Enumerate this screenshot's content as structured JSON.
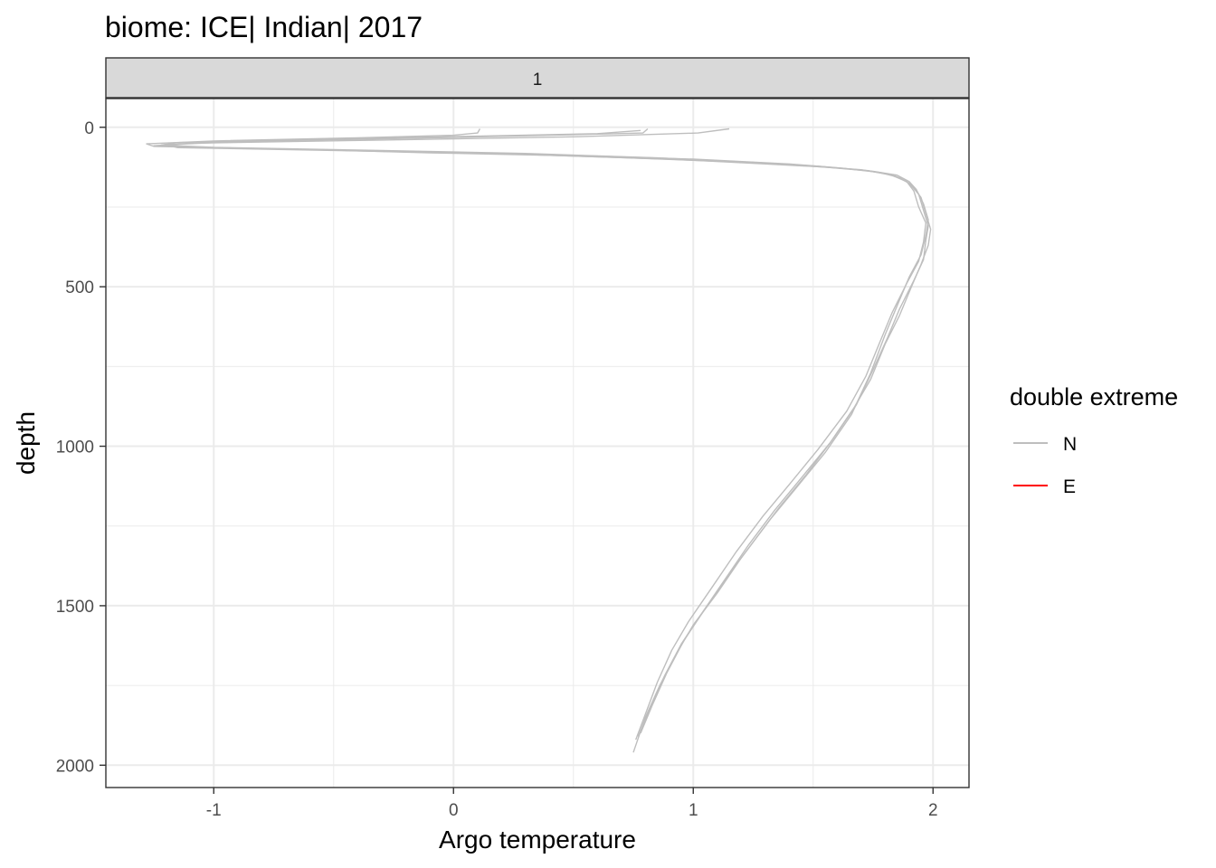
{
  "chart_data": {
    "type": "line",
    "title": "biome: ICE| Indian| 2017",
    "facet_label": "1",
    "xlabel": "Argo temperature",
    "ylabel": "depth",
    "xlim": [
      -1.45,
      2.15
    ],
    "ylim": [
      2070,
      -90
    ],
    "y_reversed": true,
    "x_ticks": [
      -1,
      0,
      1,
      2
    ],
    "x_tick_labels": [
      "-1",
      "0",
      "1",
      "2"
    ],
    "y_ticks": [
      0,
      500,
      1000,
      1500,
      2000
    ],
    "y_tick_labels": [
      "0",
      "500",
      "1000",
      "1500",
      "2000"
    ],
    "grid": true,
    "legend": {
      "title": "double extreme",
      "position": "right",
      "entries": [
        {
          "label": "N",
          "color": "#bebebe"
        },
        {
          "label": "E",
          "color": "#ff0000"
        }
      ]
    },
    "series": [
      {
        "group": "N",
        "color": "#bebebe",
        "points": [
          [
            0.11,
            5
          ],
          [
            0.1,
            18
          ],
          [
            0.0,
            25
          ],
          [
            -0.4,
            33
          ],
          [
            -1.0,
            43
          ],
          [
            -1.28,
            52
          ],
          [
            -1.25,
            60
          ],
          [
            -0.6,
            70
          ],
          [
            -0.1,
            80
          ],
          [
            0.4,
            88
          ],
          [
            0.9,
            100
          ],
          [
            1.3,
            115
          ],
          [
            1.55,
            125
          ],
          [
            1.75,
            138
          ],
          [
            1.85,
            150
          ],
          [
            1.9,
            170
          ],
          [
            1.93,
            195
          ],
          [
            1.96,
            240
          ],
          [
            1.98,
            290
          ],
          [
            1.97,
            340
          ],
          [
            1.95,
            400
          ],
          [
            1.9,
            470
          ],
          [
            1.85,
            560
          ],
          [
            1.8,
            650
          ],
          [
            1.74,
            770
          ],
          [
            1.66,
            900
          ],
          [
            1.55,
            1020
          ],
          [
            1.43,
            1130
          ],
          [
            1.32,
            1230
          ],
          [
            1.2,
            1350
          ],
          [
            1.1,
            1460
          ],
          [
            1.0,
            1560
          ],
          [
            0.93,
            1650
          ],
          [
            0.86,
            1750
          ],
          [
            0.8,
            1850
          ],
          [
            0.75,
            1960
          ]
        ]
      },
      {
        "group": "N",
        "color": "#bebebe",
        "points": [
          [
            0.81,
            5
          ],
          [
            0.79,
            18
          ],
          [
            0.4,
            25
          ],
          [
            -0.2,
            35
          ],
          [
            -0.9,
            45
          ],
          [
            -1.2,
            55
          ],
          [
            -1.15,
            64
          ],
          [
            -0.4,
            74
          ],
          [
            0.2,
            83
          ],
          [
            0.7,
            95
          ],
          [
            1.15,
            108
          ],
          [
            1.45,
            120
          ],
          [
            1.7,
            133
          ],
          [
            1.82,
            148
          ],
          [
            1.89,
            170
          ],
          [
            1.92,
            200
          ],
          [
            1.94,
            250
          ],
          [
            1.97,
            300
          ],
          [
            1.96,
            360
          ],
          [
            1.94,
            420
          ],
          [
            1.89,
            490
          ],
          [
            1.83,
            580
          ],
          [
            1.78,
            670
          ],
          [
            1.72,
            780
          ],
          [
            1.64,
            890
          ],
          [
            1.52,
            1010
          ],
          [
            1.4,
            1120
          ],
          [
            1.29,
            1220
          ],
          [
            1.18,
            1330
          ],
          [
            1.08,
            1440
          ],
          [
            0.98,
            1550
          ],
          [
            0.91,
            1640
          ],
          [
            0.85,
            1740
          ],
          [
            0.8,
            1840
          ],
          [
            0.76,
            1920
          ]
        ]
      },
      {
        "group": "N",
        "color": "#bebebe",
        "points": [
          [
            1.15,
            5
          ],
          [
            1.02,
            18
          ],
          [
            0.5,
            30
          ],
          [
            -0.3,
            40
          ],
          [
            -1.1,
            50
          ],
          [
            -1.25,
            58
          ],
          [
            -0.9,
            66
          ],
          [
            -0.2,
            76
          ],
          [
            0.5,
            88
          ],
          [
            1.0,
            100
          ],
          [
            1.4,
            115
          ],
          [
            1.62,
            128
          ],
          [
            1.78,
            142
          ],
          [
            1.86,
            158
          ],
          [
            1.91,
            180
          ],
          [
            1.95,
            220
          ],
          [
            1.97,
            270
          ],
          [
            1.99,
            320
          ],
          [
            1.98,
            370
          ],
          [
            1.95,
            430
          ],
          [
            1.91,
            500
          ],
          [
            1.86,
            590
          ],
          [
            1.8,
            680
          ],
          [
            1.74,
            790
          ],
          [
            1.67,
            880
          ],
          [
            1.57,
            990
          ],
          [
            1.45,
            1100
          ],
          [
            1.34,
            1200
          ],
          [
            1.23,
            1310
          ],
          [
            1.13,
            1420
          ],
          [
            1.03,
            1530
          ],
          [
            0.95,
            1620
          ],
          [
            0.88,
            1720
          ],
          [
            0.82,
            1820
          ],
          [
            0.77,
            1910
          ]
        ]
      },
      {
        "group": "N",
        "color": "#bebebe",
        "points": [
          [
            0.78,
            10
          ],
          [
            0.6,
            20
          ],
          [
            0.1,
            28
          ],
          [
            -0.6,
            38
          ],
          [
            -1.15,
            48
          ],
          [
            -1.22,
            56
          ],
          [
            -1.0,
            63
          ],
          [
            -0.3,
            73
          ],
          [
            0.3,
            82
          ],
          [
            0.85,
            96
          ],
          [
            1.25,
            110
          ],
          [
            1.52,
            122
          ],
          [
            1.73,
            136
          ],
          [
            1.84,
            152
          ],
          [
            1.9,
            175
          ],
          [
            1.94,
            210
          ],
          [
            1.96,
            260
          ],
          [
            1.98,
            310
          ],
          [
            1.97,
            355
          ],
          [
            1.96,
            415
          ],
          [
            1.92,
            480
          ],
          [
            1.86,
            570
          ],
          [
            1.81,
            660
          ],
          [
            1.75,
            760
          ],
          [
            1.68,
            870
          ],
          [
            1.58,
            980
          ],
          [
            1.47,
            1090
          ],
          [
            1.36,
            1190
          ],
          [
            1.25,
            1300
          ],
          [
            1.14,
            1410
          ],
          [
            1.04,
            1520
          ],
          [
            0.96,
            1610
          ],
          [
            0.89,
            1710
          ],
          [
            0.83,
            1810
          ],
          [
            0.78,
            1900
          ]
        ]
      }
    ]
  }
}
